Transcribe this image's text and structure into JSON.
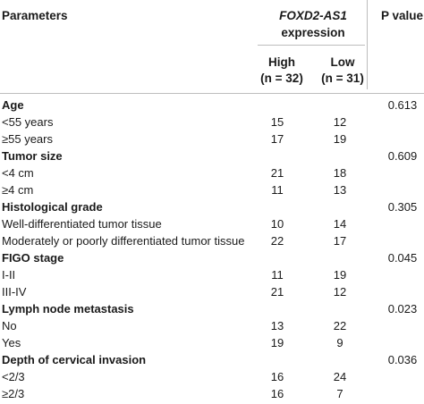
{
  "header": {
    "parameters": "Parameters",
    "gene": "FOXD2-AS1",
    "expression": "expression",
    "p_value": "P value",
    "high_label": "High",
    "high_n": "(n = 32)",
    "low_label": "Low",
    "low_n": "(n = 31)"
  },
  "rows": [
    {
      "type": "section",
      "label": "Age",
      "p": "0.613"
    },
    {
      "type": "data",
      "label": "<55 years",
      "high": "15",
      "low": "12"
    },
    {
      "type": "data",
      "label": "≥55 years",
      "high": "17",
      "low": "19"
    },
    {
      "type": "section",
      "label": "Tumor size",
      "p": "0.609"
    },
    {
      "type": "data",
      "label": "<4 cm",
      "high": "21",
      "low": "18"
    },
    {
      "type": "data",
      "label": "≥4 cm",
      "high": "11",
      "low": "13"
    },
    {
      "type": "section",
      "label": "Histological grade",
      "p": "0.305"
    },
    {
      "type": "data",
      "label": "Well-differentiated tumor tissue",
      "high": "10",
      "low": "14"
    },
    {
      "type": "data",
      "label": "Moderately or poorly differentiated tumor tissue",
      "high": "22",
      "low": "17"
    },
    {
      "type": "section",
      "label": "FIGO stage",
      "p": "0.045"
    },
    {
      "type": "data",
      "label": "I-II",
      "high": "11",
      "low": "19"
    },
    {
      "type": "data",
      "label": "III-IV",
      "high": "21",
      "low": "12"
    },
    {
      "type": "section",
      "label": "Lymph node metastasis",
      "p": "0.023"
    },
    {
      "type": "data",
      "label": "No",
      "high": "13",
      "low": "22"
    },
    {
      "type": "data",
      "label": "Yes",
      "high": "19",
      "low": "9"
    },
    {
      "type": "section",
      "label": "Depth of cervical invasion",
      "p": "0.036"
    },
    {
      "type": "data",
      "label": "<2/3",
      "high": "16",
      "low": "24"
    },
    {
      "type": "data",
      "label": "≥2/3",
      "high": "16",
      "low": "7"
    }
  ]
}
